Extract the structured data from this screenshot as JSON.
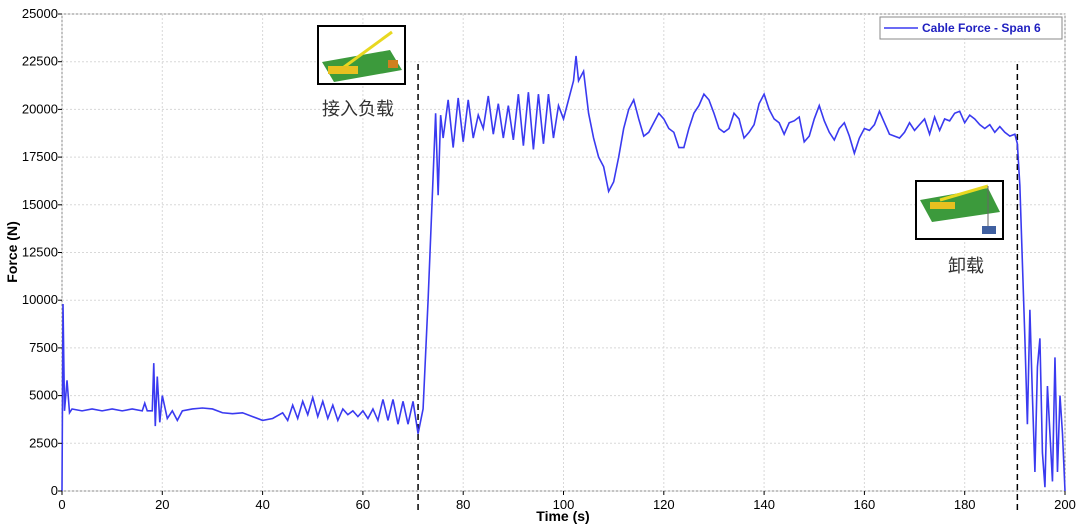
{
  "chart_data": {
    "type": "line",
    "xlabel": "Time (s)",
    "ylabel": "Force (N)",
    "xlim": [
      0,
      200
    ],
    "ylim": [
      0,
      25000
    ],
    "xticks": [
      0,
      20,
      40,
      60,
      80,
      100,
      120,
      140,
      160,
      180,
      200
    ],
    "yticks": [
      0,
      2500,
      5000,
      7500,
      10000,
      12500,
      15000,
      17500,
      20000,
      22500,
      25000
    ],
    "grid": true,
    "legend": "upper right",
    "vlines": [
      71,
      190.5
    ],
    "annotations": [
      {
        "text": "接入负载",
        "x": 71
      },
      {
        "text": "卸载",
        "x": 190.5
      }
    ],
    "x": [
      0,
      0.2,
      0.5,
      1,
      1.5,
      2,
      4,
      6,
      8,
      10,
      12,
      14,
      16,
      16.5,
      17,
      18,
      18.3,
      18.6,
      19,
      19.5,
      20,
      21,
      22,
      23,
      24,
      26,
      28,
      30,
      32,
      34,
      36,
      38,
      40,
      42,
      44,
      45,
      46,
      47,
      48,
      49,
      50,
      51,
      52,
      53,
      54,
      55,
      56,
      57,
      58,
      59,
      60,
      61,
      62,
      63,
      64,
      65,
      66,
      67,
      68,
      69,
      70,
      71,
      72,
      73,
      74,
      74.5,
      75,
      75.5,
      76,
      77,
      78,
      79,
      80,
      81,
      82,
      83,
      84,
      85,
      86,
      87,
      88,
      89,
      90,
      91,
      92,
      93,
      94,
      95,
      96,
      97,
      98,
      99,
      100,
      101,
      102,
      102.5,
      103,
      104,
      105,
      106,
      107,
      108,
      109,
      110,
      111,
      112,
      113,
      114,
      115,
      116,
      117,
      118,
      119,
      120,
      121,
      122,
      123,
      124,
      125,
      126,
      127,
      128,
      129,
      130,
      131,
      132,
      133,
      134,
      135,
      136,
      137,
      138,
      139,
      140,
      141,
      142,
      143,
      144,
      145,
      146,
      147,
      148,
      149,
      150,
      151,
      152,
      153,
      154,
      155,
      156,
      157,
      158,
      159,
      160,
      161,
      162,
      163,
      164,
      165,
      166,
      167,
      168,
      169,
      170,
      171,
      172,
      173,
      174,
      175,
      176,
      177,
      178,
      179,
      180,
      181,
      182,
      183,
      184,
      185,
      186,
      187,
      188,
      189,
      190,
      190.5,
      191,
      191.5,
      192,
      192.5,
      193,
      193.5,
      194,
      194.5,
      195,
      195.5,
      196,
      196.5,
      197,
      197.5,
      198,
      198.5,
      199,
      199.5,
      200
    ],
    "series": [
      {
        "name": "Cable Force - Span 6",
        "color": "#3a3af0",
        "values": [
          0,
          9800,
          4200,
          5800,
          4100,
          4300,
          4200,
          4300,
          4200,
          4300,
          4200,
          4300,
          4200,
          4600,
          4200,
          4200,
          6700,
          3400,
          6000,
          3600,
          5000,
          3800,
          4200,
          3700,
          4200,
          4300,
          4350,
          4300,
          4100,
          4050,
          4100,
          3900,
          3700,
          3800,
          4100,
          3700,
          4500,
          3800,
          4700,
          4000,
          4900,
          3900,
          4700,
          3800,
          4500,
          3700,
          4300,
          4000,
          4200,
          3900,
          4200,
          3800,
          4300,
          3700,
          4800,
          3700,
          4800,
          3500,
          4700,
          3500,
          4700,
          3000,
          4300,
          10000,
          16500,
          19800,
          15500,
          19700,
          18500,
          20500,
          18000,
          20600,
          18300,
          20500,
          18500,
          19700,
          19000,
          20700,
          18700,
          20300,
          18500,
          20200,
          18400,
          20800,
          18100,
          20900,
          17900,
          20800,
          18200,
          20800,
          18500,
          20200,
          19500,
          20500,
          21500,
          22800,
          21500,
          22000,
          19800,
          18500,
          17500,
          17000,
          15700,
          16200,
          17500,
          19000,
          20000,
          20500,
          19500,
          18600,
          18800,
          19300,
          19800,
          19500,
          19000,
          18800,
          18000,
          18000,
          19000,
          19800,
          20200,
          20800,
          20500,
          19800,
          19000,
          18800,
          19000,
          19800,
          19500,
          18500,
          18800,
          19200,
          20300,
          20800,
          20000,
          19500,
          19300,
          18700,
          19300,
          19400,
          19600,
          18300,
          18600,
          19500,
          20200,
          19400,
          18800,
          18400,
          19000,
          19300,
          18600,
          17700,
          18500,
          19000,
          18900,
          19200,
          19900,
          19300,
          18700,
          18600,
          18500,
          18800,
          19300,
          18900,
          19200,
          19500,
          18700,
          19600,
          18900,
          19500,
          19400,
          19800,
          19900,
          19300,
          19700,
          19500,
          19200,
          19000,
          19200,
          18800,
          19100,
          18800,
          18600,
          18700,
          18200,
          16000,
          12000,
          8000,
          3500,
          9500,
          5000,
          1000,
          6500,
          8000,
          2000,
          200,
          5500,
          3000,
          500,
          7000,
          1000,
          5000,
          3000,
          0
        ]
      }
    ]
  }
}
